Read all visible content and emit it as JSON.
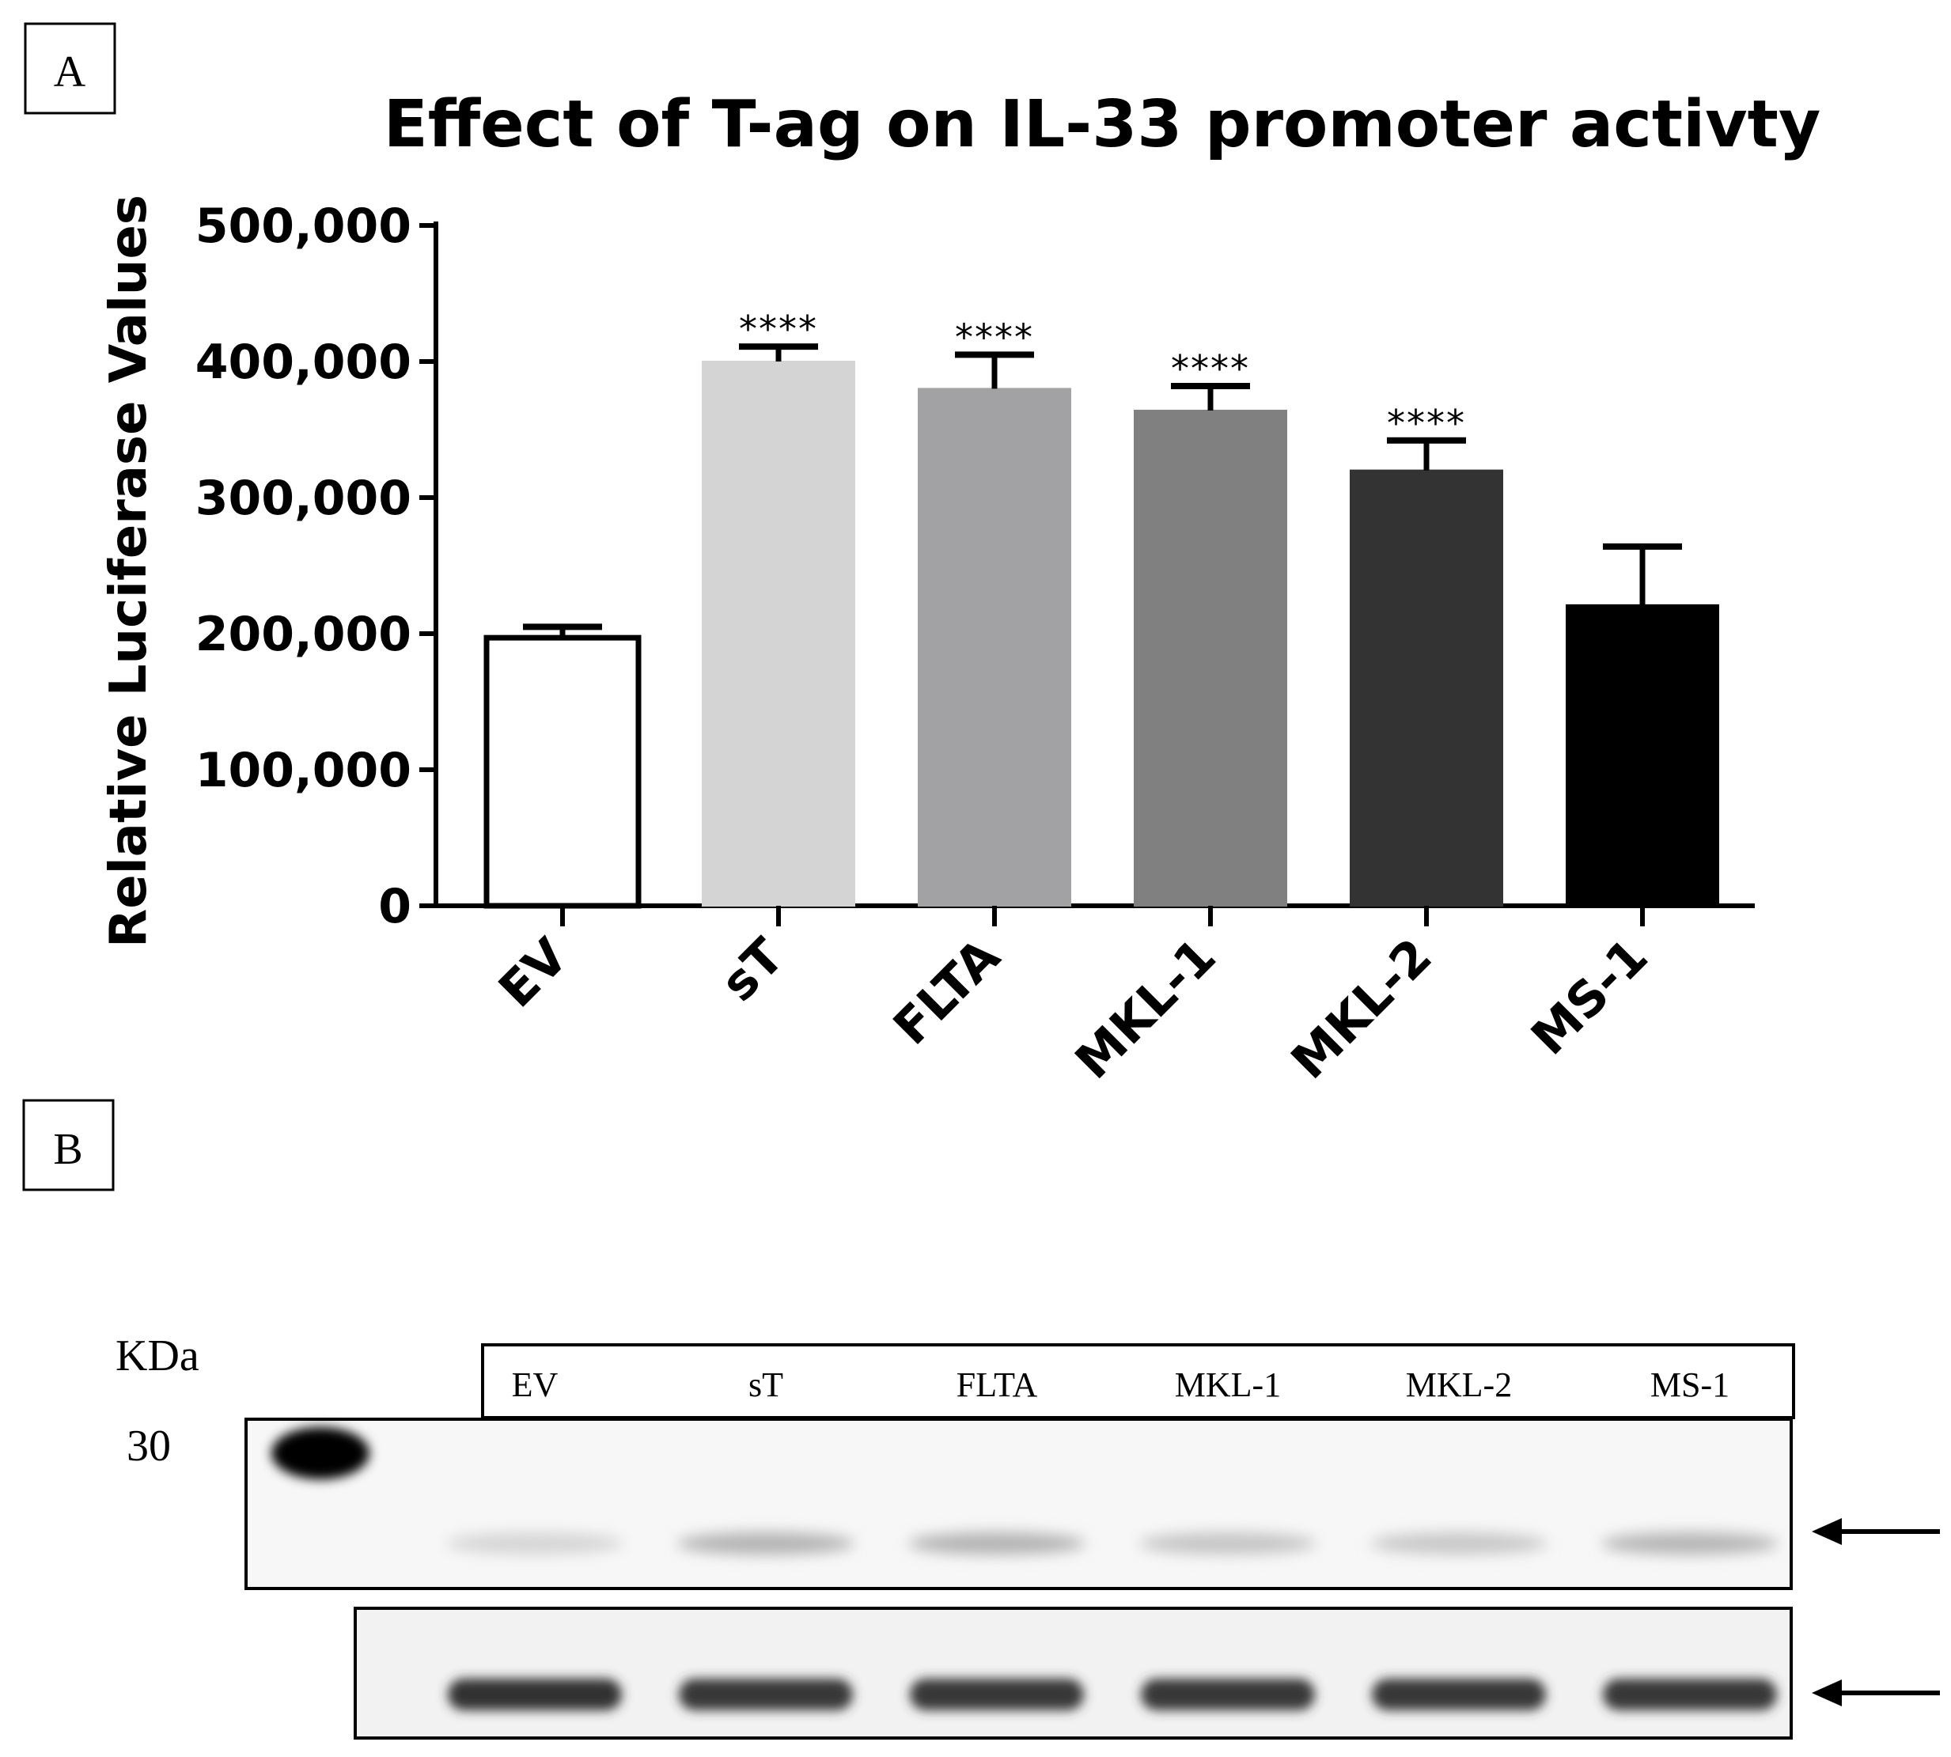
{
  "panels": {
    "a": "A",
    "b": "B"
  },
  "chart_data": {
    "type": "bar",
    "title": "Effect of T-ag on IL-33 promoter activty",
    "ylabel": "Relative Luciferase Values",
    "xlabel": "",
    "categories": [
      "EV",
      "sT",
      "FLTA",
      "MKL-1",
      "MKL-2",
      "MS-1"
    ],
    "values": [
      197000,
      400000,
      380000,
      364000,
      320000,
      221000
    ],
    "errors": [
      8000,
      11000,
      25000,
      18000,
      22000,
      43000
    ],
    "significance": [
      "",
      "****",
      "****",
      "****",
      "****",
      ""
    ],
    "bar_colors": [
      "#ffffff",
      "#d4d4d4",
      "#a2a2a4",
      "#808080",
      "#333333",
      "#000000"
    ],
    "ylim": [
      0,
      500000
    ],
    "yticks": [
      0,
      100000,
      200000,
      300000,
      400000,
      500000
    ],
    "ytick_labels": [
      "0",
      "100,000",
      "200,000",
      "300,000",
      "400,000",
      "500,000"
    ],
    "grid": false,
    "legend": "none"
  },
  "blot": {
    "kda_label": "KDa",
    "marker": "30",
    "lanes": [
      "EV",
      "sT",
      "FLTA",
      "MKL-1",
      "MKL-2",
      "MS-1"
    ],
    "band_intensity_top": [
      0.2,
      0.42,
      0.42,
      0.3,
      0.28,
      0.4
    ],
    "band_intensity_bottom": [
      0.95,
      0.92,
      0.92,
      0.92,
      0.92,
      0.92
    ]
  }
}
